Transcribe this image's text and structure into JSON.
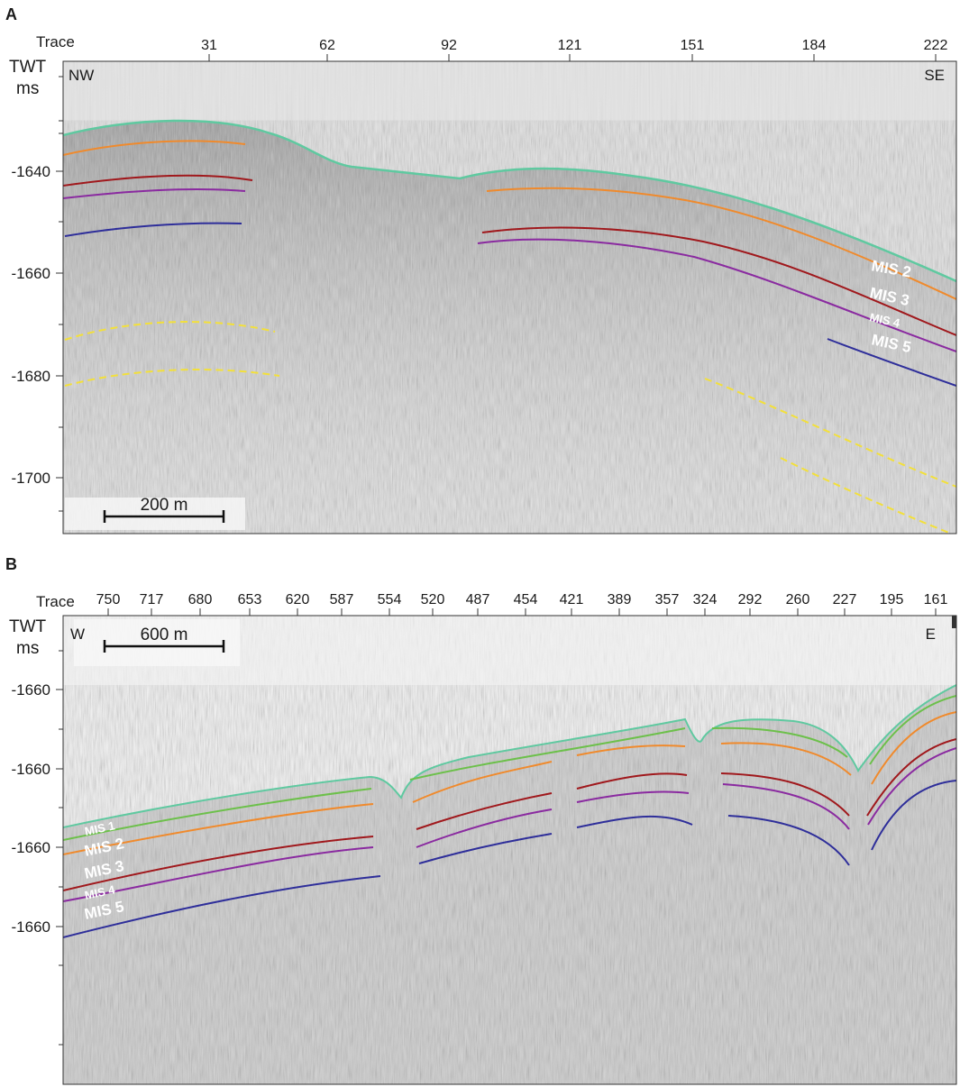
{
  "panels": [
    {
      "id": "A",
      "letter": "A",
      "trace_label": "Trace",
      "twt_label": "TWT",
      "twt_unit": "ms",
      "left_dir": "NW",
      "right_dir": "SE",
      "traces": [
        "31",
        "62",
        "92",
        "121",
        "151",
        "184",
        "222"
      ],
      "depth_ticks": [
        "-1640",
        "-1660",
        "-1680",
        "-1700"
      ],
      "scale_bar": "200 m",
      "horizon_labels": [
        "MIS 2",
        "MIS 3",
        "MIS 4",
        "MIS 5"
      ]
    },
    {
      "id": "B",
      "letter": "B",
      "trace_label": "Trace",
      "twt_label": "TWT",
      "twt_unit": "ms",
      "left_dir": "W",
      "right_dir": "E",
      "traces": [
        "750",
        "717",
        "680",
        "653",
        "620",
        "587",
        "554",
        "520",
        "487",
        "454",
        "421",
        "389",
        "357",
        "324",
        "292",
        "260",
        "227",
        "195",
        "161"
      ],
      "depth_ticks": [
        "-1660",
        "-1660",
        "-1660",
        "-1660"
      ],
      "scale_bar": "600 m",
      "horizon_labels": [
        "MIS 1",
        "MIS 2",
        "MIS 3",
        "MIS 4",
        "MIS 5"
      ]
    }
  ],
  "colors": {
    "seafloor": "#5fc9a0",
    "mis1": "#6cc04a",
    "mis2": "#f08a2c",
    "mis3": "#a0181c",
    "mis4": "#8a2aa0",
    "mis5": "#2e2e9a",
    "dashed": "#f3e03a"
  }
}
